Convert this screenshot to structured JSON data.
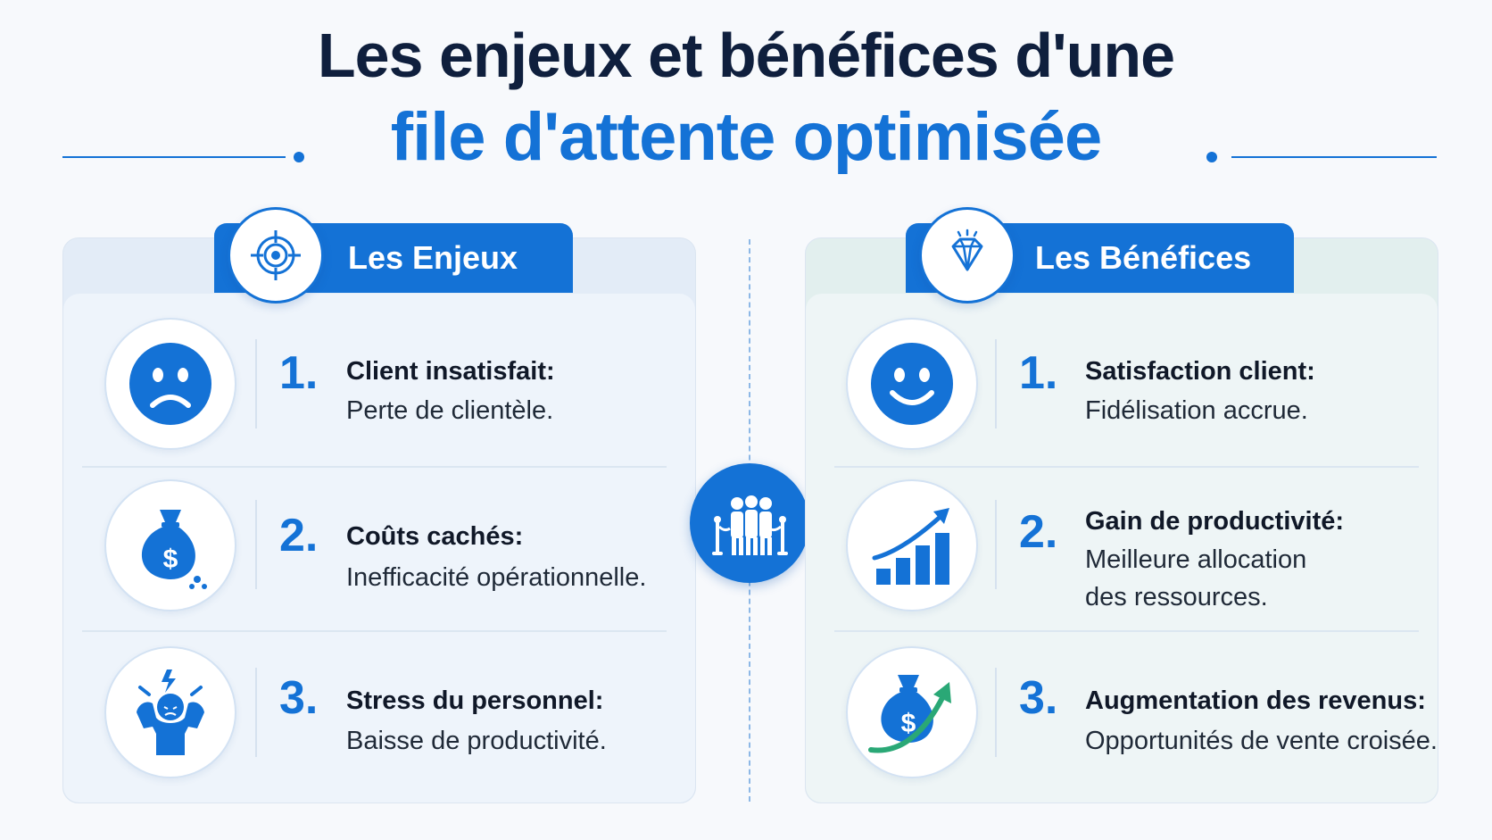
{
  "title": {
    "line1": "Les enjeux et bénéfices d'une",
    "line2": "file d'attente optimisée"
  },
  "colors": {
    "accent": "#1472d6",
    "title_dark": "#0f1f3d",
    "green_accent": "#2aa876"
  },
  "enjeux": {
    "heading": "Les Enjeux",
    "icon": "target-icon",
    "items": [
      {
        "number": "1.",
        "title": "Client insatisfait:",
        "desc": "Perte de clientèle.",
        "icon": "sad-face-icon"
      },
      {
        "number": "2.",
        "title": "Coûts cachés:",
        "desc": "Inefficacité opérationnelle.",
        "icon": "leaking-money-bag-icon"
      },
      {
        "number": "3.",
        "title": "Stress du personnel:",
        "desc": "Baisse de productivité.",
        "icon": "stressed-person-icon"
      }
    ]
  },
  "benefices": {
    "heading": "Les Bénéfices",
    "icon": "diamond-icon",
    "items": [
      {
        "number": "1.",
        "title": "Satisfaction client:",
        "desc": "Fidélisation accrue.",
        "icon": "smiley-face-icon"
      },
      {
        "number": "2.",
        "title": "Gain de productivité:",
        "desc_line1": "Meilleure allocation",
        "desc_line2": "des ressources.",
        "icon": "growth-chart-icon"
      },
      {
        "number": "3.",
        "title": "Augmentation des revenus:",
        "desc": "Opportunités de vente croisée.",
        "icon": "money-bag-arrow-icon"
      }
    ]
  },
  "center": {
    "icon": "queue-people-icon"
  }
}
